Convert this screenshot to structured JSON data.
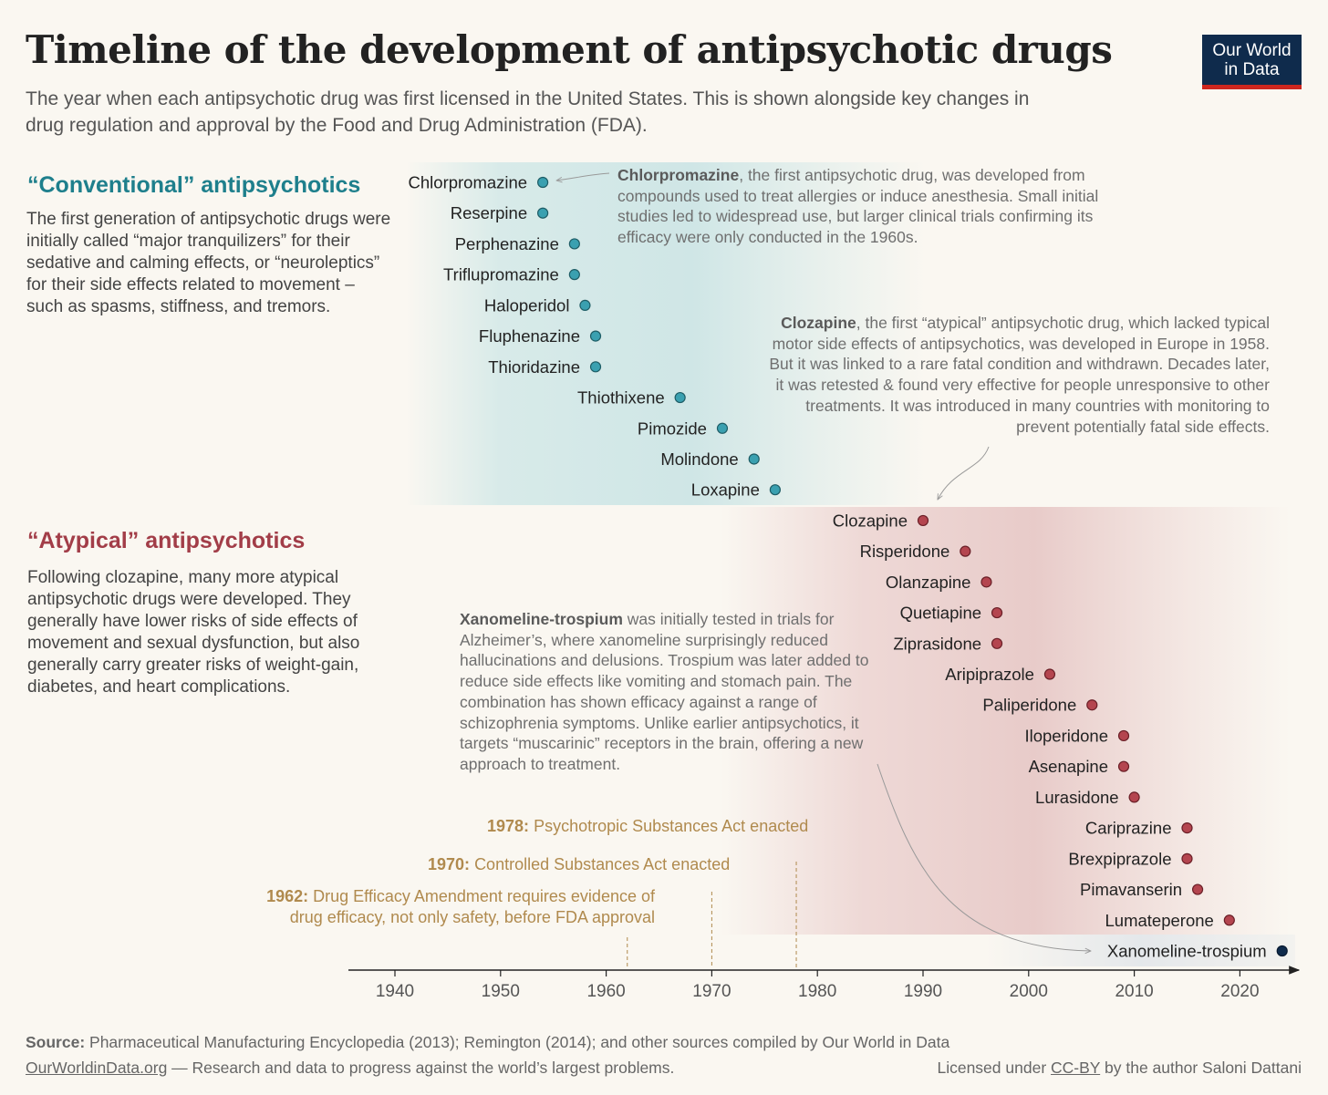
{
  "header": {
    "title": "Timeline of the development of antipsychotic drugs",
    "subtitle": "The year when each antipsychotic drug was first licensed in the United States. This is shown alongside key changes in drug regulation and approval by the Food and Drug Administration (FDA).",
    "logo_line1": "Our World",
    "logo_line2": "in Data"
  },
  "sections": {
    "conventional": {
      "heading": "“Conventional” antipsychotics",
      "text": "The first generation of antipsychotic drugs were initially called “major tranquilizers” for their sedative and calming effects, or “neuroleptics” for their side effects related to movement – such as spasms, stiffness, and tremors."
    },
    "atypical": {
      "heading": "“Atypical” antipsychotics",
      "text": "Following clozapine, many more atypical antipsychotic drugs were developed. They generally have lower risks of side effects of movement and sexual dysfunction, but also generally carry greater risks of weight-gain, diabetes, and heart complications."
    }
  },
  "annotations": {
    "chlorpromazine": {
      "name": "Chlorpromazine",
      "text": ", the first antipsychotic drug, was developed from compounds used to treat allergies or induce anesthesia. Small initial studies led to widespread use, but larger clinical trials confirming its efficacy were only conducted in the 1960s."
    },
    "clozapine": {
      "name": "Clozapine",
      "text": ", the first “atypical” antipsychotic drug, which lacked typical motor side effects of antipsychotics, was developed in Europe in 1958. But it was linked to a rare fatal condition and withdrawn. Decades later, it was retested & found very effective for people unresponsive to other treatments. It was introduced in many countries with monitoring to prevent potentially fatal side effects."
    },
    "xanomeline": {
      "name": "Xanomeline-trospium",
      "text": " was initially tested in trials for Alzheimer’s, where xanomeline surprisingly reduced hallucinations and delusions. Trospium was later added to reduce side effects like vomiting and stomach pain. The combination has shown efficacy against a range of schizophrenia symptoms. Unlike earlier antipsychotics, it targets “muscarinic” receptors in the brain, offering a new approach to treatment."
    }
  },
  "regulations": [
    {
      "year_label": "1962:",
      "text": "Drug Efficacy Amendment requires evidence of drug efficacy, not only safety, before FDA approval"
    },
    {
      "year_label": "1970:",
      "text": "Controlled Substances Act enacted"
    },
    {
      "year_label": "1978:",
      "text": "Psychotropic Substances Act enacted"
    }
  ],
  "footer": {
    "source_label": "Source:",
    "source_text": " Pharmaceutical Manufacturing Encyclopedia (2013); Remington (2014); and other sources compiled by Our World in Data",
    "site": "OurWorldinData.org",
    "tagline": " — Research and data to progress against the world’s largest problems.",
    "license_pre": "Licensed under ",
    "license_link": "CC-BY",
    "license_post": " by the author Saloni Dattani"
  },
  "colors": {
    "conventional": "#3aa0b0",
    "atypical": "#b4454f",
    "new": "#0f2b4c",
    "regulation": "#b08a4e",
    "background": "#faf7f1"
  },
  "chart_data": {
    "type": "scatter",
    "x_axis": {
      "ticks": [
        1940,
        1950,
        1960,
        1970,
        1980,
        1990,
        2000,
        2010,
        2020
      ],
      "range": [
        1936,
        2027
      ]
    },
    "series": [
      {
        "name": "“Conventional” antipsychotics",
        "points": [
          {
            "label": "Chlorpromazine",
            "year": 1954
          },
          {
            "label": "Reserpine",
            "year": 1954
          },
          {
            "label": "Perphenazine",
            "year": 1957
          },
          {
            "label": "Triflupromazine",
            "year": 1957
          },
          {
            "label": "Haloperidol",
            "year": 1958
          },
          {
            "label": "Fluphenazine",
            "year": 1959
          },
          {
            "label": "Thioridazine",
            "year": 1959
          },
          {
            "label": "Thiothixene",
            "year": 1967
          },
          {
            "label": "Pimozide",
            "year": 1971
          },
          {
            "label": "Molindone",
            "year": 1974
          },
          {
            "label": "Loxapine",
            "year": 1976
          }
        ]
      },
      {
        "name": "“Atypical” antipsychotics",
        "points": [
          {
            "label": "Clozapine",
            "year": 1990
          },
          {
            "label": "Risperidone",
            "year": 1994
          },
          {
            "label": "Olanzapine",
            "year": 1996
          },
          {
            "label": "Quetiapine",
            "year": 1997
          },
          {
            "label": "Ziprasidone",
            "year": 1997
          },
          {
            "label": "Aripiprazole",
            "year": 2002
          },
          {
            "label": "Paliperidone",
            "year": 2006
          },
          {
            "label": "Iloperidone",
            "year": 2009
          },
          {
            "label": "Asenapine",
            "year": 2009
          },
          {
            "label": "Lurasidone",
            "year": 2010
          },
          {
            "label": "Cariprazine",
            "year": 2015
          },
          {
            "label": "Brexpiprazole",
            "year": 2015
          },
          {
            "label": "Pimavanserin",
            "year": 2016
          },
          {
            "label": "Lumateperone",
            "year": 2019
          }
        ]
      },
      {
        "points": [
          {
            "label": "Xanomeline-trospium",
            "year": 2024
          }
        ]
      }
    ],
    "regulation_years": [
      1962,
      1970,
      1978
    ]
  }
}
